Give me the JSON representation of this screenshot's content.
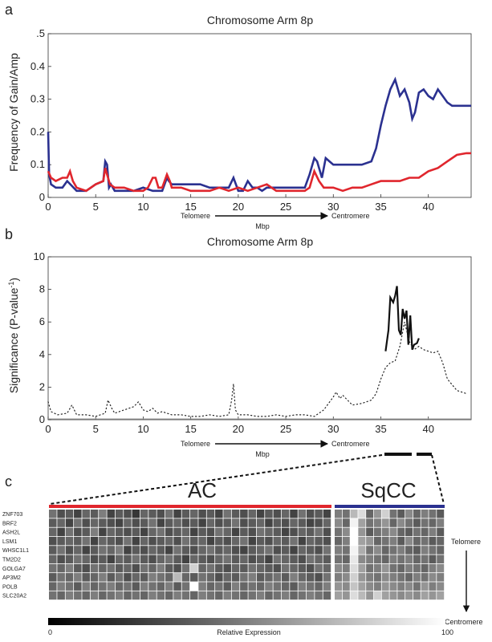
{
  "chart_data": [
    {
      "panel": "a",
      "type": "line",
      "title": "Chromosome Arm 8p",
      "ylabel": "Frequency of Gain/Amp",
      "xlabel": "Mbp",
      "direction_left": "Telomere",
      "direction_right": "Centromere",
      "xlim": [
        0,
        44.5
      ],
      "ylim": [
        0,
        0.5
      ],
      "xticks": [
        "0",
        "5",
        "10",
        "15",
        "20",
        "25",
        "30",
        "35",
        "40"
      ],
      "yticks": [
        "0",
        "0.1",
        "0.2",
        "0.3",
        "0.4",
        ".5"
      ],
      "grid": false,
      "series": [
        {
          "color": "#2b3190",
          "x": [
            0,
            0.1,
            0.3,
            0.8,
            1.5,
            2,
            3,
            4,
            5,
            5.8,
            6,
            6.2,
            6.4,
            6.6,
            7,
            8,
            9,
            10,
            11,
            12,
            12.5,
            12.7,
            13,
            14,
            15,
            16,
            17,
            18,
            19,
            19.5,
            20,
            20.5,
            21,
            21.5,
            22,
            22.5,
            23,
            24,
            25,
            26,
            27,
            27.5,
            28,
            28.3,
            28.8,
            29.2,
            29.6,
            30,
            31,
            32,
            33,
            34,
            34.5,
            35,
            35.5,
            36,
            36.5,
            37,
            37.5,
            38,
            38.3,
            38.6,
            39,
            39.5,
            40,
            40.5,
            41,
            41.5,
            42,
            42.5,
            43,
            44,
            44.5
          ],
          "y": [
            0.2,
            0.07,
            0.04,
            0.03,
            0.03,
            0.05,
            0.02,
            0.02,
            0.04,
            0.05,
            0.11,
            0.1,
            0.03,
            0.04,
            0.02,
            0.02,
            0.02,
            0.03,
            0.02,
            0.02,
            0.06,
            0.05,
            0.04,
            0.04,
            0.04,
            0.04,
            0.03,
            0.03,
            0.03,
            0.06,
            0.02,
            0.02,
            0.05,
            0.03,
            0.03,
            0.02,
            0.03,
            0.03,
            0.03,
            0.03,
            0.03,
            0.07,
            0.12,
            0.11,
            0.06,
            0.12,
            0.11,
            0.1,
            0.1,
            0.1,
            0.1,
            0.11,
            0.15,
            0.22,
            0.28,
            0.33,
            0.36,
            0.31,
            0.33,
            0.29,
            0.24,
            0.26,
            0.32,
            0.33,
            0.31,
            0.3,
            0.33,
            0.31,
            0.29,
            0.28,
            0.28,
            0.28,
            0.28
          ]
        },
        {
          "color": "#e0262d",
          "x": [
            0,
            0.3,
            0.8,
            1.5,
            2,
            2.3,
            2.6,
            3,
            4,
            5,
            5.8,
            6,
            6.2,
            6.5,
            7,
            8,
            9,
            10,
            10.5,
            11,
            11.3,
            11.6,
            12,
            12.5,
            12.8,
            13,
            14,
            15,
            16,
            17,
            18,
            19,
            20,
            21,
            22,
            23,
            24,
            25,
            26,
            27,
            27.5,
            28,
            28.5,
            29,
            30,
            31,
            32,
            33,
            34,
            35,
            36,
            37,
            38,
            39,
            40,
            41,
            42,
            43,
            44,
            44.5
          ],
          "y": [
            0.08,
            0.06,
            0.05,
            0.06,
            0.06,
            0.08,
            0.05,
            0.03,
            0.02,
            0.04,
            0.05,
            0.09,
            0.07,
            0.04,
            0.03,
            0.03,
            0.02,
            0.02,
            0.03,
            0.06,
            0.06,
            0.03,
            0.03,
            0.07,
            0.05,
            0.03,
            0.03,
            0.02,
            0.02,
            0.02,
            0.03,
            0.02,
            0.03,
            0.02,
            0.03,
            0.04,
            0.02,
            0.02,
            0.02,
            0.02,
            0.03,
            0.08,
            0.05,
            0.03,
            0.03,
            0.02,
            0.03,
            0.03,
            0.04,
            0.05,
            0.05,
            0.05,
            0.06,
            0.06,
            0.08,
            0.09,
            0.11,
            0.13,
            0.135,
            0.135
          ]
        }
      ]
    },
    {
      "panel": "b",
      "type": "line",
      "title": "Chromosome Arm 8p",
      "ylabel": "Significance (P-value",
      "ylabel_superscript": "-1",
      "ylabel_close": ")",
      "xlabel": "Mbp",
      "direction_left": "Telomere",
      "direction_right": "Centromere",
      "xlim": [
        0,
        44.5
      ],
      "ylim": [
        0,
        10
      ],
      "xticks": [
        "0",
        "5",
        "10",
        "15",
        "20",
        "25",
        "30",
        "35",
        "40"
      ],
      "yticks": [
        "0",
        "2",
        "4",
        "6",
        "8",
        "10"
      ],
      "grid": false,
      "series": [
        {
          "style": "solid",
          "color": "#111111",
          "x": [
            35.5,
            35.8,
            36,
            36.3,
            36.5,
            36.7,
            36.9,
            37.1,
            37.3,
            37.5,
            37.7,
            37.9,
            38.1,
            38.3,
            38.5,
            38.8,
            39
          ],
          "y": [
            4.2,
            5.5,
            7.5,
            7.2,
            7.6,
            8.2,
            5.5,
            5.2,
            6.8,
            6.2,
            6.7,
            4.6,
            6.4,
            4.3,
            4.6,
            4.7,
            5
          ]
        },
        {
          "style": "dotted",
          "color": "#222222",
          "x": [
            0,
            0.3,
            1,
            2,
            2.5,
            3,
            4,
            5,
            6,
            6.3,
            6.7,
            7,
            8,
            9,
            9.5,
            10,
            10.5,
            11,
            11.5,
            12,
            13,
            14,
            15,
            16,
            17,
            18,
            19,
            19.3,
            19.5,
            19.7,
            20,
            21,
            22,
            23,
            24,
            25,
            26,
            27,
            28,
            29,
            30,
            30.3,
            30.7,
            31,
            32,
            33,
            34,
            34.5,
            35,
            35.5,
            36,
            36.5,
            37,
            37.5,
            38,
            38.5,
            39,
            39.5,
            40,
            40.5,
            41,
            41.5,
            42,
            43,
            44
          ],
          "y": [
            1.1,
            0.5,
            0.3,
            0.4,
            0.9,
            0.3,
            0.3,
            0.2,
            0.4,
            1.2,
            0.7,
            0.4,
            0.6,
            0.8,
            1.1,
            0.6,
            0.5,
            0.7,
            0.4,
            0.5,
            0.3,
            0.3,
            0.2,
            0.2,
            0.3,
            0.2,
            0.3,
            1.2,
            2.2,
            0.6,
            0.3,
            0.3,
            0.2,
            0.2,
            0.3,
            0.2,
            0.3,
            0.3,
            0.2,
            0.6,
            1.4,
            1.7,
            1.3,
            1.5,
            0.9,
            1,
            1.2,
            1.6,
            2.5,
            3.2,
            3.5,
            3.6,
            4.5,
            6,
            4.8,
            4.3,
            4.5,
            4.3,
            4.2,
            4.1,
            4.2,
            3.5,
            2.5,
            1.8,
            1.6
          ]
        }
      ]
    },
    {
      "panel": "c",
      "type": "heatmap",
      "groups": [
        {
          "label": "AC",
          "color": "#e0262d",
          "columns": 34
        },
        {
          "label": "SqCC",
          "color": "#2b3190",
          "columns": 14
        }
      ],
      "rows": [
        "ZNF703",
        "BRF2",
        "ASH2L",
        "LSM1",
        "WHSC1L1",
        "TM2D2",
        "GOLGA7",
        "AP3M2",
        "POLB",
        "SLC20A2"
      ],
      "row_direction_top": "Telomere",
      "row_direction_bottom": "Centromere",
      "colorbar_label": "Relative Expression",
      "colorbar_min": "0",
      "colorbar_max": "100",
      "values": [
        [
          40,
          25,
          30,
          20,
          35,
          30,
          45,
          20,
          30,
          25,
          15,
          35,
          30,
          25,
          40,
          20,
          30,
          35,
          25,
          30,
          20,
          40,
          30,
          25,
          35,
          20,
          30,
          25,
          35,
          20,
          40,
          25,
          30,
          20,
          45,
          40,
          70,
          85,
          35,
          55,
          80,
          40,
          30,
          50,
          35,
          45,
          40,
          30
        ],
        [
          30,
          35,
          20,
          40,
          25,
          35,
          30,
          25,
          20,
          35,
          25,
          30,
          40,
          20,
          30,
          35,
          25,
          30,
          20,
          35,
          25,
          30,
          40,
          25,
          30,
          35,
          20,
          30,
          25,
          35,
          30,
          20,
          25,
          35,
          50,
          35,
          95,
          60,
          40,
          45,
          55,
          35,
          50,
          40,
          30,
          40,
          35,
          45
        ],
        [
          35,
          20,
          40,
          25,
          30,
          45,
          20,
          35,
          30,
          25,
          30,
          20,
          35,
          40,
          25,
          30,
          35,
          20,
          30,
          25,
          40,
          35,
          20,
          30,
          25,
          40,
          35,
          30,
          20,
          25,
          35,
          30,
          40,
          25,
          40,
          50,
          100,
          55,
          30,
          40,
          45,
          50,
          35,
          30,
          40,
          35,
          45,
          30
        ],
        [
          25,
          30,
          35,
          30,
          40,
          20,
          35,
          30,
          25,
          40,
          20,
          35,
          25,
          30,
          35,
          25,
          40,
          30,
          35,
          20,
          30,
          25,
          35,
          40,
          20,
          30,
          25,
          35,
          30,
          40,
          20,
          35,
          30,
          25,
          35,
          45,
          100,
          60,
          55,
          35,
          40,
          45,
          30,
          50,
          35,
          40,
          30,
          35
        ],
        [
          30,
          40,
          25,
          35,
          20,
          30,
          40,
          35,
          45,
          20,
          30,
          25,
          35,
          30,
          20,
          40,
          30,
          25,
          35,
          40,
          30,
          35,
          25,
          20,
          30,
          35,
          40,
          25,
          30,
          20,
          35,
          30,
          25,
          40,
          45,
          40,
          95,
          65,
          40,
          50,
          35,
          40,
          45,
          35,
          30,
          45,
          40,
          35
        ],
        [
          35,
          25,
          30,
          40,
          35,
          25,
          30,
          20,
          35,
          30,
          40,
          30,
          25,
          35,
          40,
          30,
          20,
          35,
          30,
          25,
          35,
          40,
          30,
          35,
          25,
          30,
          20,
          40,
          35,
          30,
          25,
          40,
          35,
          30,
          40,
          35,
          90,
          50,
          45,
          40,
          35,
          45,
          40,
          45,
          35,
          40,
          30,
          40
        ],
        [
          40,
          35,
          45,
          30,
          25,
          40,
          35,
          40,
          30,
          35,
          25,
          40,
          35,
          45,
          30,
          25,
          40,
          80,
          35,
          40,
          30,
          25,
          35,
          30,
          40,
          35,
          30,
          25,
          40,
          35,
          30,
          25,
          40,
          35,
          50,
          45,
          85,
          60,
          40,
          45,
          55,
          40,
          35,
          45,
          40,
          35,
          45,
          50
        ],
        [
          30,
          40,
          35,
          45,
          30,
          35,
          45,
          30,
          40,
          25,
          35,
          30,
          45,
          40,
          35,
          70,
          35,
          30,
          40,
          35,
          25,
          35,
          30,
          40,
          45,
          30,
          35,
          40,
          30,
          45,
          35,
          30,
          25,
          40,
          45,
          50,
          80,
          55,
          45,
          40,
          50,
          45,
          40,
          35,
          45,
          40,
          50,
          45
        ],
        [
          35,
          45,
          40,
          30,
          45,
          35,
          40,
          45,
          35,
          40,
          30,
          45,
          40,
          35,
          45,
          30,
          40,
          100,
          45,
          35,
          40,
          30,
          45,
          35,
          40,
          35,
          45,
          40,
          35,
          30,
          45,
          40,
          35,
          45,
          55,
          50,
          75,
          60,
          50,
          45,
          55,
          50,
          45,
          50,
          40,
          55,
          45,
          50
        ],
        [
          40,
          35,
          45,
          40,
          35,
          45,
          35,
          40,
          45,
          35,
          40,
          35,
          45,
          40,
          35,
          45,
          40,
          35,
          45,
          40,
          35,
          45,
          40,
          35,
          40,
          45,
          35,
          40,
          45,
          35,
          40,
          45,
          40,
          35,
          60,
          55,
          85,
          70,
          55,
          80,
          60,
          55,
          50,
          55,
          50,
          60,
          55,
          60
        ]
      ]
    }
  ]
}
